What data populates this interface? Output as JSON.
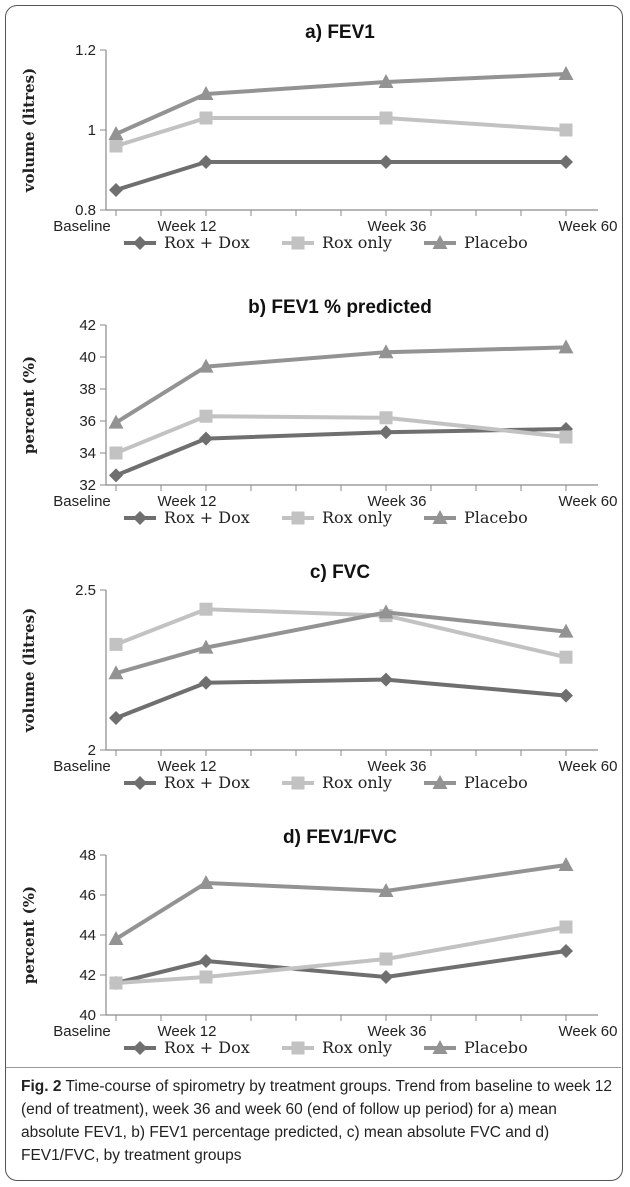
{
  "chart_data": [
    {
      "type": "line",
      "title": "a) FEV1",
      "ylabel": "volume (litres)",
      "categories": [
        "Baseline",
        "Week 12",
        "Week 36",
        "Week 60"
      ],
      "x": [
        0,
        12,
        36,
        60
      ],
      "ylim": [
        0.8,
        1.2
      ],
      "yticks": [
        "0.8",
        "1",
        "1.2"
      ],
      "yticks_values": [
        0.8,
        1.0,
        1.2
      ],
      "series": [
        {
          "name": "Rox + Dox",
          "values": [
            0.85,
            0.92,
            0.92,
            0.92
          ],
          "color": "#6f6f6f",
          "marker": "diamond"
        },
        {
          "name": "Rox only",
          "values": [
            0.96,
            1.03,
            1.03,
            1.0
          ],
          "color": "#c2c2c2",
          "marker": "square"
        },
        {
          "name": "Placebo",
          "values": [
            0.99,
            1.09,
            1.12,
            1.14
          ],
          "color": "#939393",
          "marker": "triangle"
        }
      ]
    },
    {
      "type": "line",
      "title": "b) FEV1 % predicted",
      "ylabel": "percent (%)",
      "categories": [
        "Baseline",
        "Week 12",
        "Week 36",
        "Week 60"
      ],
      "x": [
        0,
        12,
        36,
        60
      ],
      "ylim": [
        32,
        42
      ],
      "yticks": [
        "32",
        "34",
        "36",
        "38",
        "40",
        "42"
      ],
      "yticks_values": [
        32,
        34,
        36,
        38,
        40,
        42
      ],
      "series": [
        {
          "name": "Rox + Dox",
          "values": [
            32.6,
            34.9,
            35.3,
            35.5
          ],
          "color": "#6f6f6f",
          "marker": "diamond"
        },
        {
          "name": "Rox only",
          "values": [
            34.0,
            36.3,
            36.2,
            35.0
          ],
          "color": "#c2c2c2",
          "marker": "square"
        },
        {
          "name": "Placebo",
          "values": [
            35.9,
            39.4,
            40.3,
            40.6
          ],
          "color": "#939393",
          "marker": "triangle"
        }
      ]
    },
    {
      "type": "line",
      "title": "c) FVC",
      "ylabel": "volume (litres)",
      "categories": [
        "Baseline",
        "Week 12",
        "Week 36",
        "Week 60"
      ],
      "x": [
        0,
        12,
        36,
        60
      ],
      "ylim": [
        2.0,
        2.5
      ],
      "yticks": [
        "2",
        "2.5"
      ],
      "yticks_values": [
        2.0,
        2.5
      ],
      "series": [
        {
          "name": "Rox + Dox",
          "values": [
            2.1,
            2.21,
            2.22,
            2.17
          ],
          "color": "#6f6f6f",
          "marker": "diamond"
        },
        {
          "name": "Rox only",
          "values": [
            2.33,
            2.44,
            2.42,
            2.29
          ],
          "color": "#c2c2c2",
          "marker": "square"
        },
        {
          "name": "Placebo",
          "values": [
            2.24,
            2.32,
            2.43,
            2.37
          ],
          "color": "#939393",
          "marker": "triangle"
        }
      ]
    },
    {
      "type": "line",
      "title": "d) FEV1/FVC",
      "ylabel": "percent (%)",
      "categories": [
        "Baseline",
        "Week 12",
        "Week 36",
        "Week 60"
      ],
      "x": [
        0,
        12,
        36,
        60
      ],
      "ylim": [
        40,
        48
      ],
      "yticks": [
        "40",
        "42",
        "44",
        "46",
        "48"
      ],
      "yticks_values": [
        40,
        42,
        44,
        46,
        48
      ],
      "series": [
        {
          "name": "Rox + Dox",
          "values": [
            41.6,
            42.7,
            41.9,
            43.2
          ],
          "color": "#6f6f6f",
          "marker": "diamond"
        },
        {
          "name": "Rox only",
          "values": [
            41.6,
            41.9,
            42.8,
            44.4
          ],
          "color": "#c2c2c2",
          "marker": "square"
        },
        {
          "name": "Placebo",
          "values": [
            43.8,
            46.6,
            46.2,
            47.5
          ],
          "color": "#939393",
          "marker": "triangle"
        }
      ]
    }
  ],
  "caption": {
    "label": "Fig. 2",
    "text": " Time-course of spirometry by treatment groups. Trend from baseline to week 12 (end of treatment), week 36 and week 60 (end of follow up period) for a) mean absolute FEV1, b) FEV1 percentage predicted, c) mean absolute FVC and d) FEV1/FVC, by treatment groups"
  }
}
